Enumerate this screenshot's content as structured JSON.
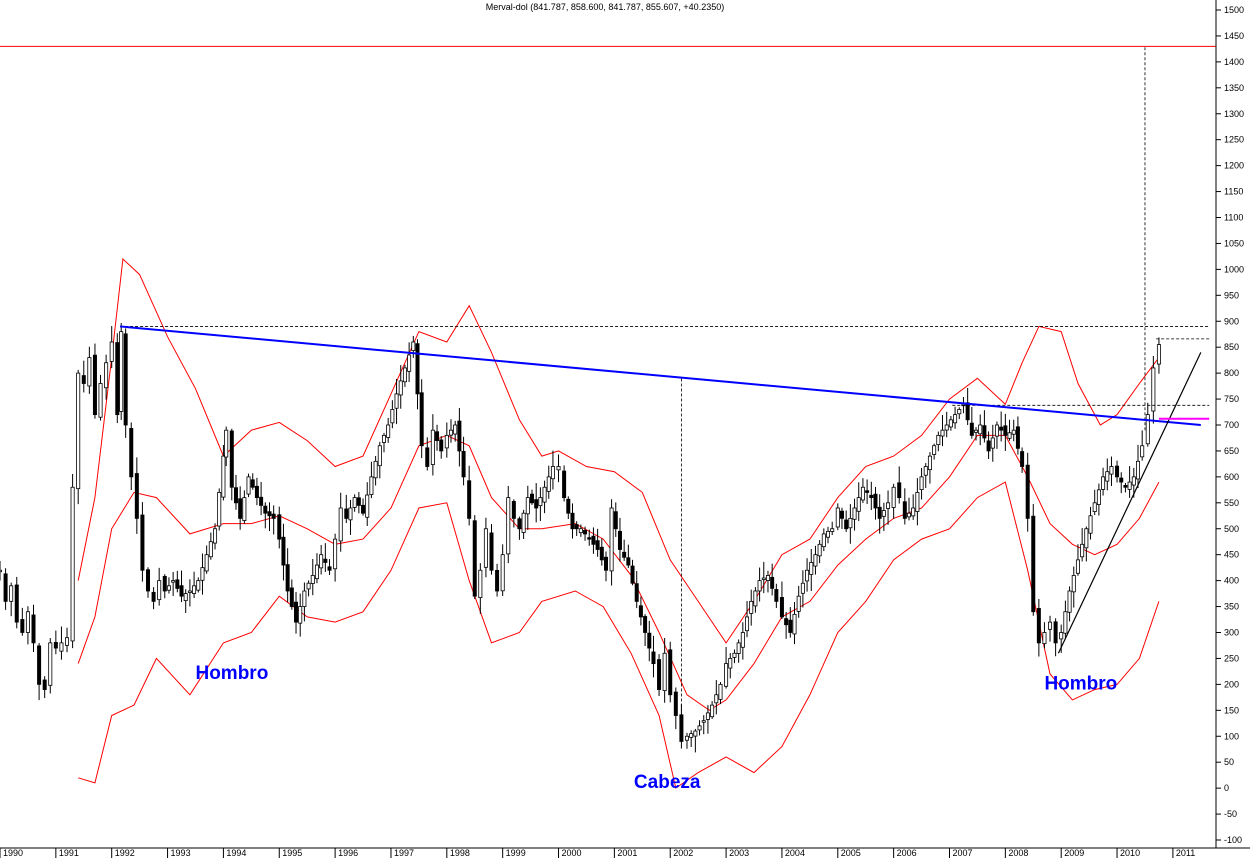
{
  "chart_data": {
    "type": "candlestick",
    "title": "Merval-dol (841.787, 858.600, 841.787, 855.607, +40.2350)",
    "y_axis": {
      "position": "right",
      "range": [
        -100,
        1500
      ],
      "ticks": [
        -100,
        -50,
        0,
        50,
        100,
        150,
        200,
        250,
        300,
        350,
        400,
        450,
        500,
        550,
        600,
        650,
        700,
        750,
        800,
        850,
        900,
        950,
        1000,
        1050,
        1100,
        1150,
        1200,
        1250,
        1300,
        1350,
        1400,
        1450,
        1500
      ]
    },
    "x_axis": {
      "range": [
        1990.0,
        2011.7
      ],
      "ticks": [
        {
          "label": "1990",
          "x": 1990.0
        },
        {
          "label": "1991",
          "x": 1991.0
        },
        {
          "label": "1992",
          "x": 1992.0
        },
        {
          "label": "1993",
          "x": 1993.0
        },
        {
          "label": "1994",
          "x": 1994.0
        },
        {
          "label": "1995",
          "x": 1995.0
        },
        {
          "label": "1996",
          "x": 1996.0
        },
        {
          "label": "1997",
          "x": 1997.0
        },
        {
          "label": "1998",
          "x": 1998.0
        },
        {
          "label": "1999",
          "x": 1999.0
        },
        {
          "label": "2000",
          "x": 2000.0
        },
        {
          "label": "2001",
          "x": 2001.0
        },
        {
          "label": "2002",
          "x": 2002.0
        },
        {
          "label": "2003",
          "x": 2003.0
        },
        {
          "label": "2004",
          "x": 2004.0
        },
        {
          "label": "2005",
          "x": 2005.0
        },
        {
          "label": "2006",
          "x": 2006.0
        },
        {
          "label": "2007",
          "x": 2007.0
        },
        {
          "label": "2008",
          "x": 2008.0
        },
        {
          "label": "2009",
          "x": 2009.0
        },
        {
          "label": "2010",
          "x": 2010.0
        },
        {
          "label": "2011",
          "x": 2011.0
        }
      ]
    },
    "close_points": [
      [
        1990.0,
        420
      ],
      [
        1990.1,
        360
      ],
      [
        1990.2,
        390
      ],
      [
        1990.3,
        320
      ],
      [
        1990.4,
        300
      ],
      [
        1990.5,
        340
      ],
      [
        1990.6,
        280
      ],
      [
        1990.7,
        200
      ],
      [
        1990.8,
        190
      ],
      [
        1990.9,
        280
      ],
      [
        1991.0,
        270
      ],
      [
        1991.1,
        280
      ],
      [
        1991.2,
        290
      ],
      [
        1991.3,
        580
      ],
      [
        1991.4,
        800
      ],
      [
        1991.5,
        780
      ],
      [
        1991.6,
        830
      ],
      [
        1991.7,
        720
      ],
      [
        1991.8,
        780
      ],
      [
        1991.9,
        820
      ],
      [
        1992.0,
        860
      ],
      [
        1992.1,
        720
      ],
      [
        1992.17,
        880
      ],
      [
        1992.25,
        700
      ],
      [
        1992.35,
        600
      ],
      [
        1992.45,
        520
      ],
      [
        1992.55,
        420
      ],
      [
        1992.65,
        380
      ],
      [
        1992.75,
        360
      ],
      [
        1992.85,
        400
      ],
      [
        1992.95,
        380
      ],
      [
        1993.1,
        400
      ],
      [
        1993.25,
        370
      ],
      [
        1993.4,
        380
      ],
      [
        1993.55,
        400
      ],
      [
        1993.7,
        450
      ],
      [
        1993.85,
        500
      ],
      [
        1994.0,
        640
      ],
      [
        1994.05,
        690
      ],
      [
        1994.15,
        580
      ],
      [
        1994.3,
        520
      ],
      [
        1994.45,
        600
      ],
      [
        1994.6,
        560
      ],
      [
        1994.75,
        530
      ],
      [
        1994.9,
        520
      ],
      [
        1995.0,
        480
      ],
      [
        1995.15,
        380
      ],
      [
        1995.3,
        320
      ],
      [
        1995.45,
        380
      ],
      [
        1995.6,
        410
      ],
      [
        1995.75,
        450
      ],
      [
        1995.9,
        420
      ],
      [
        1996.0,
        480
      ],
      [
        1996.1,
        540
      ],
      [
        1996.2,
        520
      ],
      [
        1996.35,
        560
      ],
      [
        1996.5,
        530
      ],
      [
        1996.65,
        600
      ],
      [
        1996.8,
        660
      ],
      [
        1996.95,
        700
      ],
      [
        1997.1,
        760
      ],
      [
        1997.25,
        810
      ],
      [
        1997.4,
        860
      ],
      [
        1997.55,
        660
      ],
      [
        1997.65,
        620
      ],
      [
        1997.75,
        690
      ],
      [
        1997.9,
        650
      ],
      [
        1998.0,
        680
      ],
      [
        1998.15,
        700
      ],
      [
        1998.3,
        600
      ],
      [
        1998.4,
        520
      ],
      [
        1998.5,
        370
      ],
      [
        1998.6,
        420
      ],
      [
        1998.7,
        500
      ],
      [
        1998.8,
        420
      ],
      [
        1998.9,
        380
      ],
      [
        1999.0,
        450
      ],
      [
        1999.1,
        560
      ],
      [
        1999.2,
        520
      ],
      [
        1999.3,
        500
      ],
      [
        1999.45,
        560
      ],
      [
        1999.6,
        540
      ],
      [
        1999.75,
        580
      ],
      [
        1999.9,
        620
      ],
      [
        2000.0,
        620
      ],
      [
        2000.1,
        560
      ],
      [
        2000.25,
        500
      ],
      [
        2000.4,
        500
      ],
      [
        2000.55,
        480
      ],
      [
        2000.7,
        460
      ],
      [
        2000.85,
        420
      ],
      [
        2000.95,
        540
      ],
      [
        2001.1,
        460
      ],
      [
        2001.25,
        430
      ],
      [
        2001.4,
        360
      ],
      [
        2001.55,
        300
      ],
      [
        2001.7,
        240
      ],
      [
        2001.8,
        190
      ],
      [
        2001.9,
        260
      ],
      [
        2002.0,
        180
      ],
      [
        2002.1,
        140
      ],
      [
        2002.2,
        90
      ],
      [
        2002.3,
        100
      ],
      [
        2002.45,
        110
      ],
      [
        2002.6,
        130
      ],
      [
        2002.75,
        160
      ],
      [
        2002.9,
        200
      ],
      [
        2003.0,
        240
      ],
      [
        2003.15,
        260
      ],
      [
        2003.3,
        300
      ],
      [
        2003.45,
        360
      ],
      [
        2003.6,
        400
      ],
      [
        2003.75,
        410
      ],
      [
        2003.9,
        360
      ],
      [
        2004.0,
        330
      ],
      [
        2004.15,
        300
      ],
      [
        2004.3,
        370
      ],
      [
        2004.45,
        420
      ],
      [
        2004.6,
        450
      ],
      [
        2004.75,
        490
      ],
      [
        2004.9,
        500
      ],
      [
        2005.0,
        540
      ],
      [
        2005.15,
        500
      ],
      [
        2005.3,
        540
      ],
      [
        2005.45,
        580
      ],
      [
        2005.6,
        560
      ],
      [
        2005.75,
        520
      ],
      [
        2005.9,
        550
      ],
      [
        2006.0,
        580
      ],
      [
        2006.1,
        560
      ],
      [
        2006.2,
        520
      ],
      [
        2006.35,
        540
      ],
      [
        2006.5,
        600
      ],
      [
        2006.65,
        640
      ],
      [
        2006.8,
        680
      ],
      [
        2006.95,
        700
      ],
      [
        2007.1,
        720
      ],
      [
        2007.25,
        740
      ],
      [
        2007.4,
        680
      ],
      [
        2007.55,
        700
      ],
      [
        2007.7,
        650
      ],
      [
        2007.85,
        700
      ],
      [
        2008.0,
        680
      ],
      [
        2008.15,
        690
      ],
      [
        2008.3,
        620
      ],
      [
        2008.4,
        520
      ],
      [
        2008.5,
        340
      ],
      [
        2008.6,
        280
      ],
      [
        2008.7,
        300
      ],
      [
        2008.8,
        320
      ],
      [
        2008.9,
        280
      ],
      [
        2009.0,
        300
      ],
      [
        2009.15,
        380
      ],
      [
        2009.3,
        440
      ],
      [
        2009.45,
        500
      ],
      [
        2009.6,
        550
      ],
      [
        2009.75,
        600
      ],
      [
        2009.9,
        620
      ],
      [
        2010.0,
        600
      ],
      [
        2010.15,
        580
      ],
      [
        2010.3,
        600
      ],
      [
        2010.45,
        660
      ],
      [
        2010.55,
        720
      ],
      [
        2010.65,
        810
      ],
      [
        2010.75,
        855
      ]
    ],
    "bollinger": {
      "upper": [
        [
          1991.4,
          400
        ],
        [
          1991.7,
          560
        ],
        [
          1992.0,
          830
        ],
        [
          1992.2,
          1020
        ],
        [
          1992.5,
          990
        ],
        [
          1993.0,
          870
        ],
        [
          1993.5,
          770
        ],
        [
          1994.0,
          640
        ],
        [
          1994.5,
          690
        ],
        [
          1995.0,
          705
        ],
        [
          1995.5,
          670
        ],
        [
          1996.0,
          620
        ],
        [
          1996.5,
          640
        ],
        [
          1997.0,
          760
        ],
        [
          1997.5,
          880
        ],
        [
          1998.0,
          860
        ],
        [
          1998.4,
          930
        ],
        [
          1998.8,
          840
        ],
        [
          1999.3,
          710
        ],
        [
          1999.7,
          640
        ],
        [
          2000.0,
          650
        ],
        [
          2000.5,
          620
        ],
        [
          2001.0,
          610
        ],
        [
          2001.5,
          570
        ],
        [
          2002.0,
          440
        ],
        [
          2002.5,
          360
        ],
        [
          2003.0,
          280
        ],
        [
          2003.5,
          360
        ],
        [
          2004.0,
          450
        ],
        [
          2004.5,
          480
        ],
        [
          2005.0,
          560
        ],
        [
          2005.5,
          620
        ],
        [
          2006.0,
          640
        ],
        [
          2006.5,
          680
        ],
        [
          2007.0,
          750
        ],
        [
          2007.5,
          790
        ],
        [
          2008.0,
          740
        ],
        [
          2008.3,
          820
        ],
        [
          2008.6,
          890
        ],
        [
          2009.0,
          880
        ],
        [
          2009.3,
          780
        ],
        [
          2009.7,
          700
        ],
        [
          2010.0,
          720
        ],
        [
          2010.4,
          780
        ],
        [
          2010.75,
          830
        ]
      ],
      "middle": [
        [
          1991.4,
          240
        ],
        [
          1991.7,
          330
        ],
        [
          1992.0,
          500
        ],
        [
          1992.4,
          570
        ],
        [
          1992.8,
          560
        ],
        [
          1993.4,
          490
        ],
        [
          1994.0,
          510
        ],
        [
          1994.5,
          510
        ],
        [
          1995.0,
          525
        ],
        [
          1995.5,
          500
        ],
        [
          1996.0,
          470
        ],
        [
          1996.5,
          480
        ],
        [
          1997.0,
          540
        ],
        [
          1997.5,
          660
        ],
        [
          1998.0,
          680
        ],
        [
          1998.4,
          660
        ],
        [
          1998.8,
          560
        ],
        [
          1999.3,
          500
        ],
        [
          1999.7,
          500
        ],
        [
          2000.3,
          510
        ],
        [
          2000.8,
          480
        ],
        [
          2001.3,
          410
        ],
        [
          2001.8,
          300
        ],
        [
          2002.3,
          180
        ],
        [
          2002.7,
          150
        ],
        [
          2003.0,
          170
        ],
        [
          2003.5,
          240
        ],
        [
          2004.0,
          330
        ],
        [
          2004.5,
          360
        ],
        [
          2005.0,
          430
        ],
        [
          2005.5,
          480
        ],
        [
          2006.0,
          520
        ],
        [
          2006.5,
          540
        ],
        [
          2007.0,
          600
        ],
        [
          2007.5,
          680
        ],
        [
          2008.0,
          680
        ],
        [
          2008.4,
          600
        ],
        [
          2008.8,
          510
        ],
        [
          2009.2,
          470
        ],
        [
          2009.6,
          450
        ],
        [
          2010.0,
          470
        ],
        [
          2010.4,
          520
        ],
        [
          2010.75,
          590
        ]
      ],
      "lower": [
        [
          1991.4,
          20
        ],
        [
          1991.7,
          10
        ],
        [
          1992.0,
          140
        ],
        [
          1992.4,
          160
        ],
        [
          1992.8,
          250
        ],
        [
          1993.4,
          180
        ],
        [
          1994.0,
          280
        ],
        [
          1994.5,
          300
        ],
        [
          1995.0,
          370
        ],
        [
          1995.5,
          330
        ],
        [
          1996.0,
          320
        ],
        [
          1996.5,
          340
        ],
        [
          1997.0,
          420
        ],
        [
          1997.5,
          540
        ],
        [
          1998.0,
          550
        ],
        [
          1998.4,
          400
        ],
        [
          1998.8,
          280
        ],
        [
          1999.3,
          300
        ],
        [
          1999.7,
          360
        ],
        [
          2000.3,
          380
        ],
        [
          2000.8,
          350
        ],
        [
          2001.3,
          260
        ],
        [
          2001.8,
          140
        ],
        [
          2002.1,
          0
        ],
        [
          2002.5,
          30
        ],
        [
          2003.0,
          60
        ],
        [
          2003.5,
          30
        ],
        [
          2004.0,
          80
        ],
        [
          2004.5,
          180
        ],
        [
          2005.0,
          300
        ],
        [
          2005.5,
          360
        ],
        [
          2006.0,
          440
        ],
        [
          2006.5,
          480
        ],
        [
          2007.0,
          500
        ],
        [
          2007.5,
          560
        ],
        [
          2008.0,
          590
        ],
        [
          2008.4,
          420
        ],
        [
          2008.8,
          220
        ],
        [
          2009.2,
          170
        ],
        [
          2009.6,
          190
        ],
        [
          2010.0,
          200
        ],
        [
          2010.4,
          250
        ],
        [
          2010.75,
          360
        ]
      ]
    },
    "neckline": {
      "from": [
        1992.15,
        890
      ],
      "to": [
        2011.5,
        700
      ],
      "color": "#0000ff"
    },
    "uptrend_line": {
      "from": [
        2008.95,
        260
      ],
      "to": [
        2011.5,
        840
      ],
      "color": "#000000"
    },
    "magenta_line": {
      "from": [
        2010.75,
        712
      ],
      "to": [
        2011.65,
        712
      ],
      "color": "#ff00ff"
    },
    "resistance_line": {
      "value": 1430,
      "color": "#ff0000"
    },
    "dashed_horizontals": [
      {
        "value": 890,
        "from": 1992.15,
        "to": 2011.65
      },
      {
        "value": 866,
        "from": 2010.7,
        "to": 2011.65
      },
      {
        "value": 738,
        "from": 2007.05,
        "to": 2011.65
      }
    ],
    "dashed_verticals": [
      {
        "x": 2002.2,
        "from": 90,
        "to": 790
      },
      {
        "x": 2010.5,
        "from": 690,
        "to": 1430
      }
    ],
    "annotations": [
      {
        "text": "Hombro",
        "x": 1993.5,
        "y": 210
      },
      {
        "text": "Cabeza",
        "x": 2001.35,
        "y": 0
      },
      {
        "text": "Hombro",
        "x": 2008.7,
        "y": 190
      }
    ],
    "colors": {
      "candle_up": "#ffffff",
      "candle_down": "#000000",
      "bands": "#ff0000",
      "neckline": "#0000ff",
      "annotation": "#0000ff"
    }
  }
}
